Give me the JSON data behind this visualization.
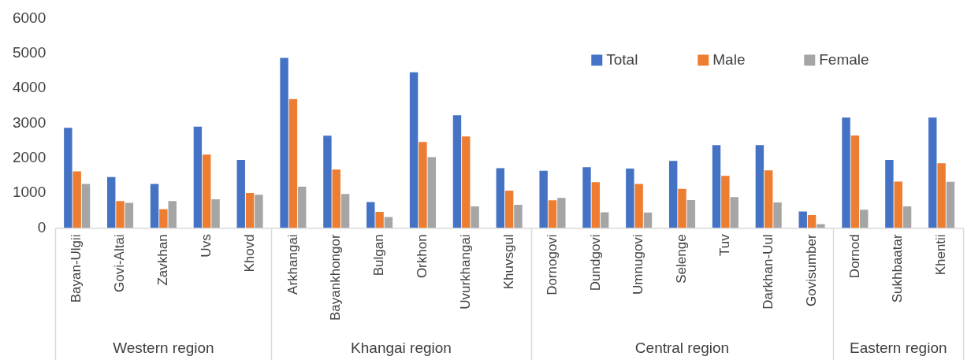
{
  "chart_data": {
    "type": "bar",
    "categories": [
      "Bayan-Ulgii",
      "Govi-Altai",
      "Zavkhan",
      "Uvs",
      "Khovd",
      "Arkhangai",
      "Bayankhongor",
      "Bulgan",
      "Orkhon",
      "Uvurkhangai",
      "Khuvsgul",
      "Dornogovi",
      "Dundgovi",
      "Umnugovi",
      "Selenge",
      "Tuv",
      "Darkhan-Uul",
      "Govisumber",
      "Dornod",
      "Sukhbaatar",
      "Khentii"
    ],
    "series": [
      {
        "name": "Total",
        "color": "#4472c4",
        "values": [
          2870,
          1460,
          1260,
          2900,
          1950,
          4870,
          2640,
          740,
          4460,
          3230,
          1710,
          1640,
          1740,
          1700,
          1920,
          2370,
          2370,
          470,
          3160,
          1950,
          3160
        ]
      },
      {
        "name": "Male",
        "color": "#ed7d31",
        "values": [
          1620,
          770,
          540,
          2100,
          1000,
          3690,
          1670,
          460,
          2460,
          2620,
          1070,
          790,
          1310,
          1260,
          1120,
          1490,
          1650,
          370,
          2650,
          1330,
          1850
        ]
      },
      {
        "name": "Female",
        "color": "#a5a5a5",
        "values": [
          1260,
          720,
          770,
          820,
          950,
          1180,
          970,
          310,
          2030,
          620,
          660,
          860,
          450,
          440,
          800,
          880,
          730,
          110,
          520,
          620,
          1320
        ]
      }
    ],
    "annotations": [
      "Western region",
      "Khangai region",
      "Central region",
      "Eastern region"
    ],
    "ylim": [
      0,
      6000
    ],
    "yticks": [
      0,
      1000,
      2000,
      3000,
      4000,
      5000,
      6000
    ],
    "grid": false,
    "legend": "top right"
  }
}
